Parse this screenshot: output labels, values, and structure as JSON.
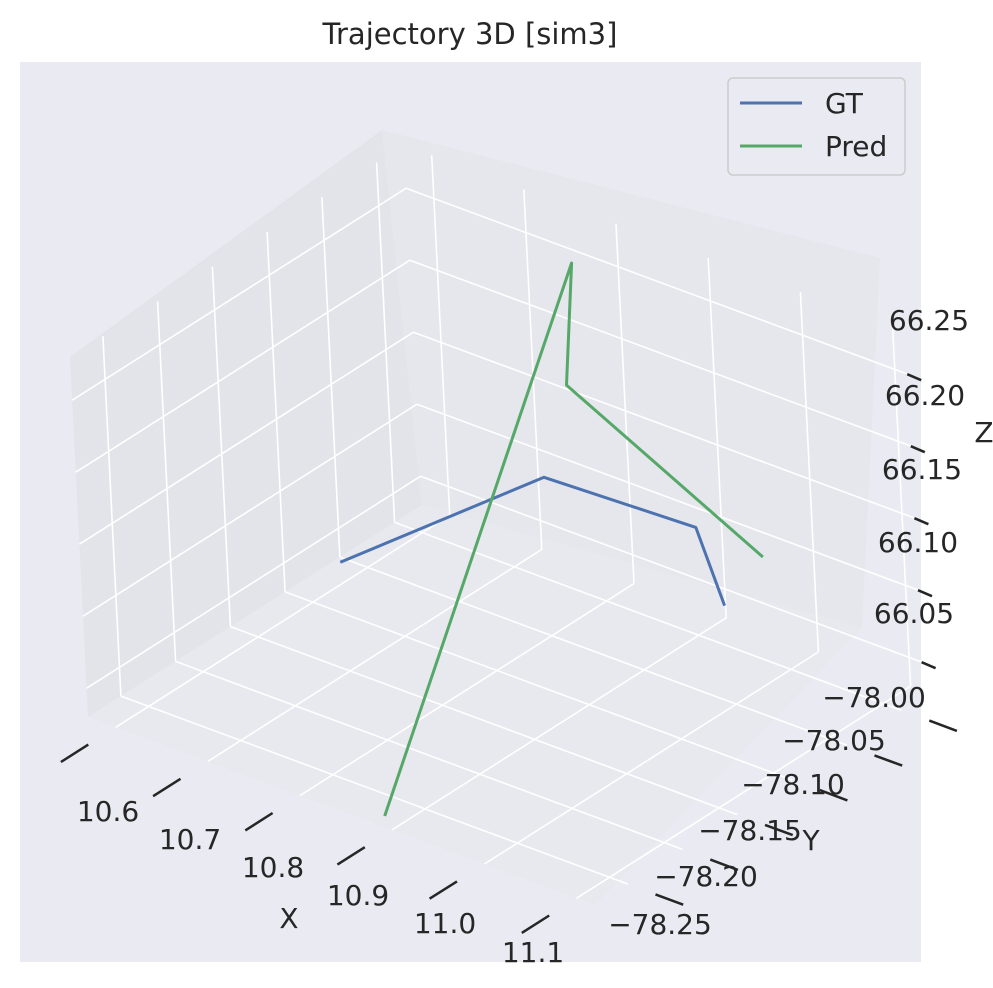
{
  "chart_data": {
    "type": "line",
    "title": "Trajectory 3D [sim3]",
    "xlabel": "X",
    "ylabel": "Y",
    "zlabel": "Z",
    "x_ticks": [
      "10.6",
      "10.7",
      "10.8",
      "10.9",
      "11.0",
      "11.1"
    ],
    "y_ticks": [
      "−78.00",
      "−78.05",
      "−78.10",
      "−78.15",
      "−78.20",
      "−78.25"
    ],
    "z_ticks": [
      "66.05",
      "66.10",
      "66.15",
      "66.20",
      "66.25"
    ],
    "legend_position": "top-right",
    "grid": true,
    "series": [
      {
        "name": "GT",
        "color": "#4c72b0",
        "points": [
          {
            "x": 10.72,
            "y": -78.17,
            "z": 66.12
          },
          {
            "x": 10.8,
            "y": -78.05,
            "z": 66.14
          },
          {
            "x": 10.99,
            "y": -78.07,
            "z": 66.16
          },
          {
            "x": 11.03,
            "y": -78.08,
            "z": 66.12
          }
        ]
      },
      {
        "name": "Pred",
        "color": "#55a868",
        "points": [
          {
            "x": 10.88,
            "y": -78.27,
            "z": 66.03
          },
          {
            "x": 10.78,
            "y": -78.0,
            "z": 66.26
          },
          {
            "x": 10.78,
            "y": -78.01,
            "z": 66.18
          },
          {
            "x": 11.1,
            "y": -78.1,
            "z": 66.18
          }
        ]
      }
    ]
  }
}
